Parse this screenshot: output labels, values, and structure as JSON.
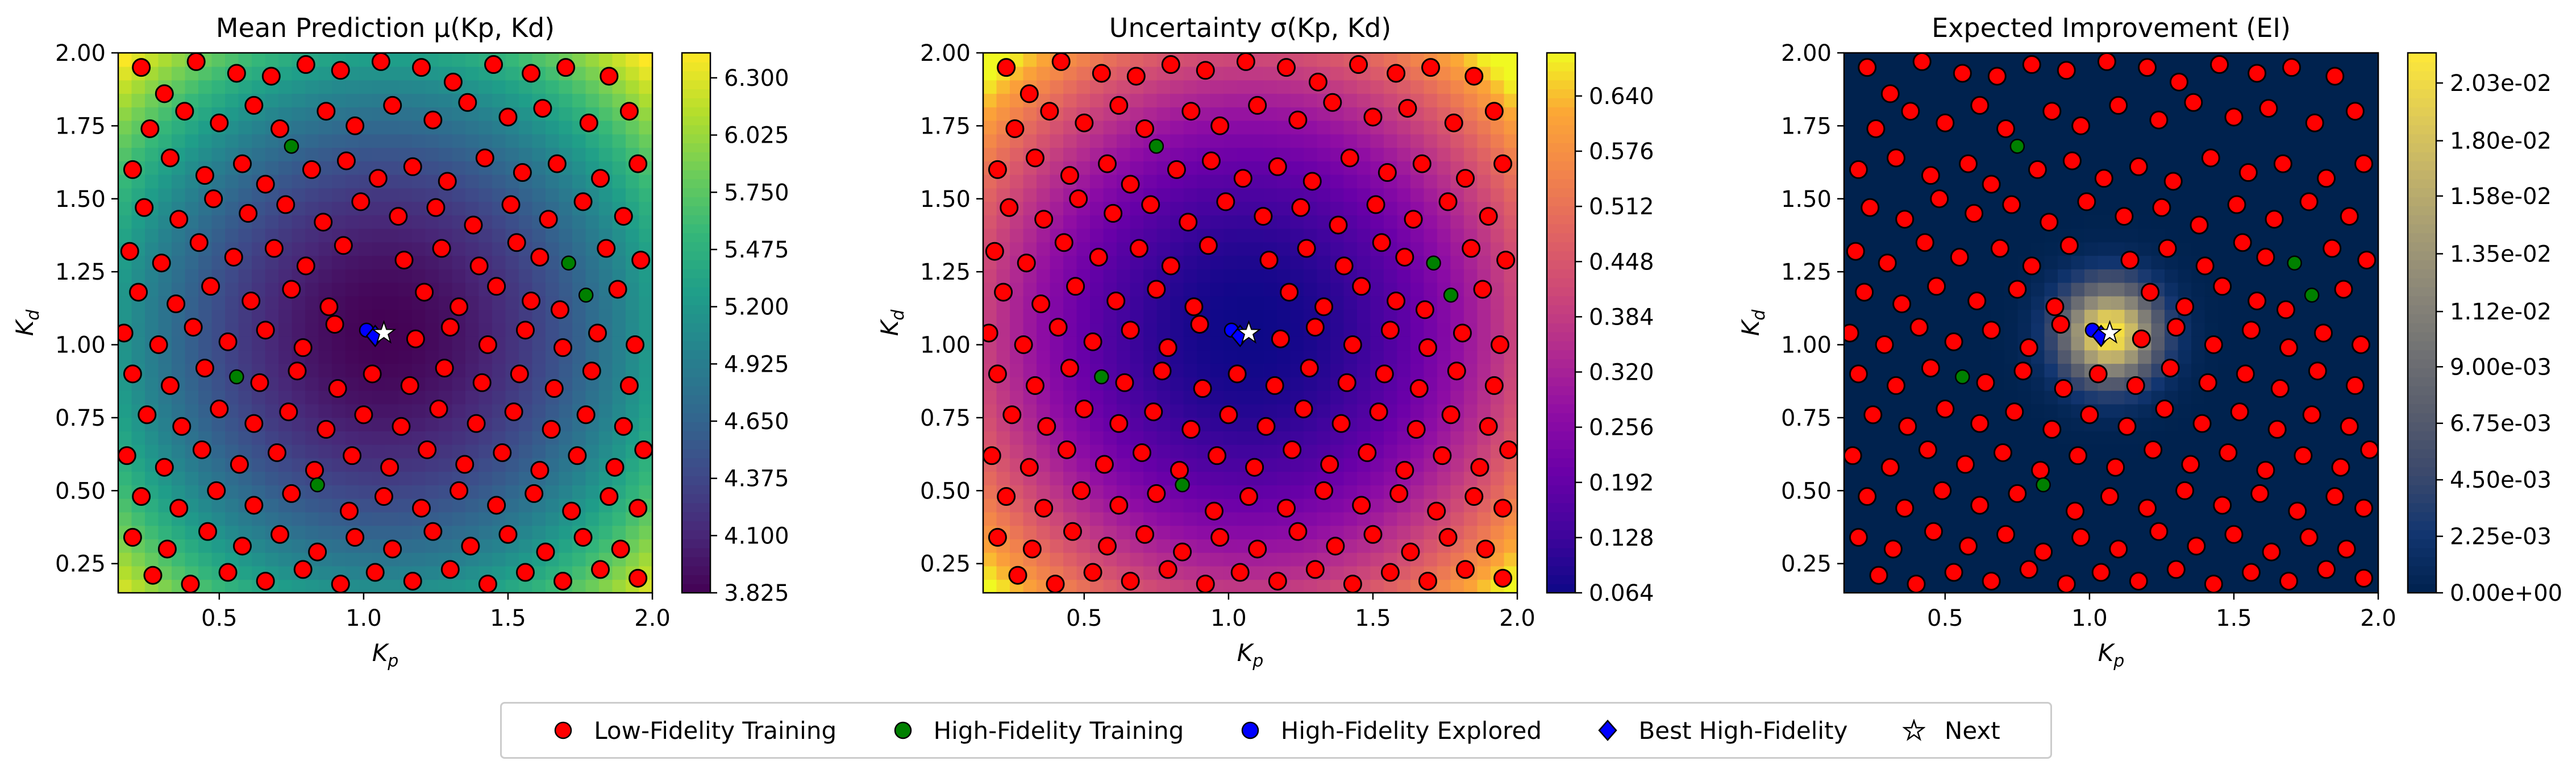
{
  "colors": {
    "low_fidelity": "#ff0000",
    "high_fidelity": "#008000",
    "high_fidelity_explored": "#0000ff",
    "best_high_fidelity": "#0000ff",
    "next": "#ffffff",
    "marker_edge": "#000000"
  },
  "panels": [
    {
      "title": "Mean Prediction μ(Kp, Kd)",
      "colormap": "viridis",
      "colorbar_ticks": [
        "3.825",
        "4.100",
        "4.375",
        "4.650",
        "4.925",
        "5.200",
        "5.475",
        "5.750",
        "6.025",
        "6.300"
      ],
      "colorbar_range": [
        3.825,
        6.42
      ]
    },
    {
      "title": "Uncertainty σ(Kp, Kd)",
      "colormap": "plasma",
      "colorbar_ticks": [
        "0.064",
        "0.128",
        "0.192",
        "0.256",
        "0.320",
        "0.384",
        "0.448",
        "0.512",
        "0.576",
        "0.640"
      ],
      "colorbar_range": [
        0.064,
        0.69
      ]
    },
    {
      "title": "Expected Improvement (EI)",
      "colormap": "cividis",
      "colorbar_ticks": [
        "0.00e+00",
        "2.25e-03",
        "4.50e-03",
        "6.75e-03",
        "9.00e-03",
        "1.12e-02",
        "1.35e-02",
        "1.58e-02",
        "1.80e-02",
        "2.03e-02"
      ],
      "colorbar_range": [
        0,
        0.0215
      ]
    }
  ],
  "legend": [
    {
      "label": "Low-Fidelity Training",
      "marker": "circle",
      "color": "#ff0000"
    },
    {
      "label": "High-Fidelity Training",
      "marker": "circle",
      "color": "#008000"
    },
    {
      "label": "High-Fidelity Explored",
      "marker": "circle",
      "color": "#0000ff"
    },
    {
      "label": "Best High-Fidelity",
      "marker": "diamond",
      "color": "#0000ff"
    },
    {
      "label": "Next",
      "marker": "star",
      "color": "#ffffff"
    }
  ],
  "chart_data": {
    "type": "heatmap",
    "xlabel": "Kp",
    "ylabel": "Kd",
    "xlim": [
      0.15,
      2.0
    ],
    "ylim": [
      0.15,
      2.0
    ],
    "x_ticks": [
      "0.5",
      "1.0",
      "1.5",
      "2.0"
    ],
    "y_ticks": [
      "0.25",
      "0.50",
      "0.75",
      "1.00",
      "1.25",
      "1.50",
      "1.75",
      "2.00"
    ],
    "high_fidelity_training": [
      [
        0.75,
        1.68
      ],
      [
        1.71,
        1.28
      ],
      [
        1.77,
        1.17
      ],
      [
        0.56,
        0.89
      ],
      [
        0.84,
        0.52
      ]
    ],
    "high_fidelity_explored": [
      [
        1.01,
        1.05
      ]
    ],
    "best_high_fidelity": [
      1.04,
      1.03
    ],
    "next_point": [
      1.07,
      1.04
    ],
    "low_fidelity_training": [
      [
        0.23,
        1.95
      ],
      [
        0.31,
        1.86
      ],
      [
        0.42,
        1.97
      ],
      [
        0.56,
        1.93
      ],
      [
        0.68,
        1.92
      ],
      [
        0.8,
        1.96
      ],
      [
        0.92,
        1.94
      ],
      [
        1.06,
        1.97
      ],
      [
        1.2,
        1.95
      ],
      [
        1.31,
        1.9
      ],
      [
        1.45,
        1.96
      ],
      [
        1.58,
        1.93
      ],
      [
        1.7,
        1.95
      ],
      [
        1.85,
        1.92
      ],
      [
        0.26,
        1.74
      ],
      [
        0.38,
        1.8
      ],
      [
        0.5,
        1.76
      ],
      [
        0.62,
        1.82
      ],
      [
        0.71,
        1.74
      ],
      [
        0.87,
        1.8
      ],
      [
        0.97,
        1.75
      ],
      [
        1.1,
        1.82
      ],
      [
        1.24,
        1.77
      ],
      [
        1.36,
        1.83
      ],
      [
        1.5,
        1.78
      ],
      [
        1.62,
        1.81
      ],
      [
        1.78,
        1.76
      ],
      [
        1.92,
        1.8
      ],
      [
        0.2,
        1.6
      ],
      [
        0.33,
        1.64
      ],
      [
        0.45,
        1.58
      ],
      [
        0.58,
        1.62
      ],
      [
        0.66,
        1.55
      ],
      [
        0.82,
        1.6
      ],
      [
        0.94,
        1.63
      ],
      [
        1.05,
        1.57
      ],
      [
        1.17,
        1.61
      ],
      [
        1.29,
        1.56
      ],
      [
        1.42,
        1.64
      ],
      [
        1.55,
        1.59
      ],
      [
        1.67,
        1.62
      ],
      [
        1.82,
        1.57
      ],
      [
        1.95,
        1.62
      ],
      [
        0.24,
        1.47
      ],
      [
        0.36,
        1.43
      ],
      [
        0.48,
        1.5
      ],
      [
        0.6,
        1.45
      ],
      [
        0.73,
        1.48
      ],
      [
        0.86,
        1.42
      ],
      [
        0.99,
        1.49
      ],
      [
        1.12,
        1.44
      ],
      [
        1.25,
        1.47
      ],
      [
        1.38,
        1.41
      ],
      [
        1.51,
        1.48
      ],
      [
        1.64,
        1.43
      ],
      [
        1.76,
        1.49
      ],
      [
        1.9,
        1.44
      ],
      [
        0.19,
        1.32
      ],
      [
        0.3,
        1.28
      ],
      [
        0.43,
        1.35
      ],
      [
        0.55,
        1.3
      ],
      [
        0.69,
        1.33
      ],
      [
        0.8,
        1.27
      ],
      [
        0.93,
        1.34
      ],
      [
        1.14,
        1.29
      ],
      [
        1.27,
        1.33
      ],
      [
        1.4,
        1.27
      ],
      [
        1.53,
        1.35
      ],
      [
        1.61,
        1.3
      ],
      [
        1.84,
        1.33
      ],
      [
        1.96,
        1.29
      ],
      [
        0.22,
        1.18
      ],
      [
        0.35,
        1.14
      ],
      [
        0.47,
        1.2
      ],
      [
        0.61,
        1.15
      ],
      [
        0.75,
        1.19
      ],
      [
        0.88,
        1.13
      ],
      [
        1.21,
        1.18
      ],
      [
        1.33,
        1.13
      ],
      [
        1.46,
        1.2
      ],
      [
        1.58,
        1.15
      ],
      [
        1.68,
        1.12
      ],
      [
        1.88,
        1.19
      ],
      [
        0.17,
        1.04
      ],
      [
        0.29,
        1.0
      ],
      [
        0.41,
        1.06
      ],
      [
        0.53,
        1.01
      ],
      [
        0.66,
        1.05
      ],
      [
        0.79,
        0.99
      ],
      [
        0.9,
        1.07
      ],
      [
        1.18,
        1.02
      ],
      [
        1.3,
        1.06
      ],
      [
        1.43,
        1.0
      ],
      [
        1.56,
        1.05
      ],
      [
        1.69,
        0.99
      ],
      [
        1.81,
        1.04
      ],
      [
        1.94,
        1.0
      ],
      [
        0.2,
        0.9
      ],
      [
        0.33,
        0.86
      ],
      [
        0.45,
        0.92
      ],
      [
        0.64,
        0.87
      ],
      [
        0.77,
        0.91
      ],
      [
        0.91,
        0.85
      ],
      [
        1.03,
        0.9
      ],
      [
        1.16,
        0.86
      ],
      [
        1.28,
        0.92
      ],
      [
        1.41,
        0.87
      ],
      [
        1.54,
        0.9
      ],
      [
        1.66,
        0.85
      ],
      [
        1.79,
        0.91
      ],
      [
        1.92,
        0.86
      ],
      [
        0.25,
        0.76
      ],
      [
        0.37,
        0.72
      ],
      [
        0.5,
        0.78
      ],
      [
        0.62,
        0.73
      ],
      [
        0.74,
        0.77
      ],
      [
        0.87,
        0.71
      ],
      [
        1.0,
        0.76
      ],
      [
        1.13,
        0.72
      ],
      [
        1.26,
        0.78
      ],
      [
        1.39,
        0.73
      ],
      [
        1.52,
        0.77
      ],
      [
        1.65,
        0.71
      ],
      [
        1.77,
        0.76
      ],
      [
        1.9,
        0.72
      ],
      [
        0.18,
        0.62
      ],
      [
        0.31,
        0.58
      ],
      [
        0.44,
        0.64
      ],
      [
        0.57,
        0.59
      ],
      [
        0.7,
        0.63
      ],
      [
        0.83,
        0.57
      ],
      [
        0.96,
        0.62
      ],
      [
        1.09,
        0.58
      ],
      [
        1.22,
        0.64
      ],
      [
        1.35,
        0.59
      ],
      [
        1.48,
        0.63
      ],
      [
        1.61,
        0.57
      ],
      [
        1.74,
        0.62
      ],
      [
        1.87,
        0.58
      ],
      [
        1.97,
        0.64
      ],
      [
        0.23,
        0.48
      ],
      [
        0.36,
        0.44
      ],
      [
        0.49,
        0.5
      ],
      [
        0.62,
        0.45
      ],
      [
        0.75,
        0.49
      ],
      [
        0.95,
        0.43
      ],
      [
        1.07,
        0.48
      ],
      [
        1.2,
        0.44
      ],
      [
        1.33,
        0.5
      ],
      [
        1.46,
        0.45
      ],
      [
        1.59,
        0.49
      ],
      [
        1.72,
        0.43
      ],
      [
        1.85,
        0.48
      ],
      [
        1.95,
        0.44
      ],
      [
        0.2,
        0.34
      ],
      [
        0.32,
        0.3
      ],
      [
        0.46,
        0.36
      ],
      [
        0.58,
        0.31
      ],
      [
        0.71,
        0.35
      ],
      [
        0.84,
        0.29
      ],
      [
        0.97,
        0.34
      ],
      [
        1.1,
        0.3
      ],
      [
        1.24,
        0.36
      ],
      [
        1.37,
        0.31
      ],
      [
        1.5,
        0.35
      ],
      [
        1.63,
        0.29
      ],
      [
        1.76,
        0.34
      ],
      [
        1.89,
        0.3
      ],
      [
        0.27,
        0.21
      ],
      [
        0.4,
        0.18
      ],
      [
        0.53,
        0.22
      ],
      [
        0.66,
        0.19
      ],
      [
        0.79,
        0.23
      ],
      [
        0.92,
        0.18
      ],
      [
        1.04,
        0.22
      ],
      [
        1.17,
        0.19
      ],
      [
        1.3,
        0.23
      ],
      [
        1.43,
        0.18
      ],
      [
        1.56,
        0.22
      ],
      [
        1.69,
        0.19
      ],
      [
        1.82,
        0.23
      ],
      [
        1.95,
        0.2
      ]
    ]
  }
}
